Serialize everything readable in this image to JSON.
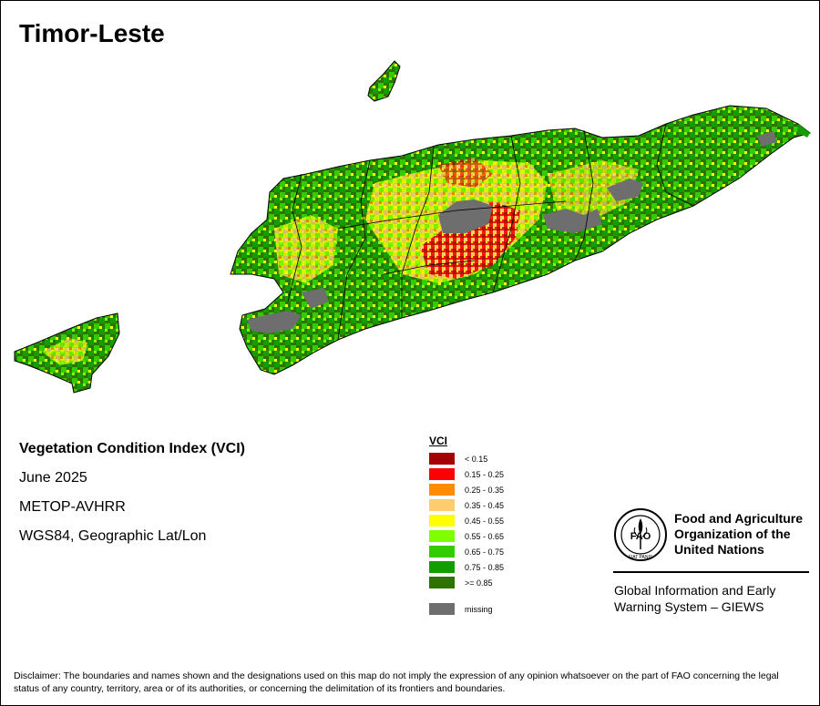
{
  "title": "Timor-Leste",
  "info": {
    "heading": "Vegetation Condition Index (VCI)",
    "date": "June 2025",
    "sensor": "METOP-AVHRR",
    "projection": "WGS84, Geographic Lat/Lon"
  },
  "legend": {
    "title": "VCI",
    "classes": [
      {
        "label": "< 0.15",
        "color": "#a50000"
      },
      {
        "label": "0.15 - 0.25",
        "color": "#ff0000"
      },
      {
        "label": "0.25 - 0.35",
        "color": "#ff8c00"
      },
      {
        "label": "0.35 - 0.45",
        "color": "#ffcc70"
      },
      {
        "label": "0.45 - 0.55",
        "color": "#ffff00"
      },
      {
        "label": "0.55 - 0.65",
        "color": "#80ff00"
      },
      {
        "label": "0.65 - 0.75",
        "color": "#33cc00"
      },
      {
        "label": "0.75 - 0.85",
        "color": "#129e00"
      },
      {
        "label": ">= 0.85",
        "color": "#2e7300"
      }
    ],
    "missing": {
      "label": "missing",
      "color": "#6e6e6e"
    }
  },
  "organization": {
    "line1": "Food and Agriculture",
    "line2": "Organization of the",
    "line3": "United Nations",
    "logo_text": "FAO",
    "logo_motto": "FIAT PANIS"
  },
  "system": {
    "line1": "Global Information and Early",
    "line2": "Warning System – GIEWS"
  },
  "disclaimer": "Disclaimer: The boundaries and names shown and the designations used on this map do not imply the expression of any opinion whatsoever on the part of FAO concerning the legal status of any country, territory, area or of its authorities, or concerning the delimitation of its frontiers and boundaries."
}
